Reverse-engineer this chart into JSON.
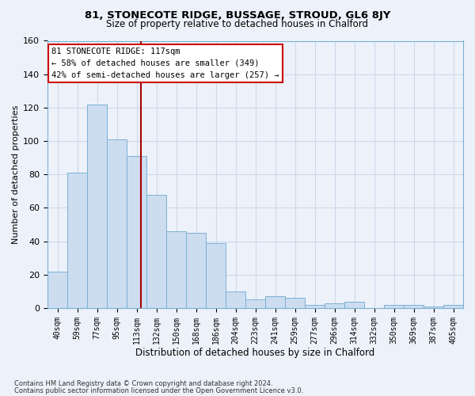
{
  "title1": "81, STONECOTE RIDGE, BUSSAGE, STROUD, GL6 8JY",
  "title2": "Size of property relative to detached houses in Chalford",
  "xlabel": "Distribution of detached houses by size in Chalford",
  "ylabel": "Number of detached properties",
  "footer1": "Contains HM Land Registry data © Crown copyright and database right 2024.",
  "footer2": "Contains public sector information licensed under the Open Government Licence v3.0.",
  "bins": [
    "40sqm",
    "59sqm",
    "77sqm",
    "95sqm",
    "113sqm",
    "132sqm",
    "150sqm",
    "168sqm",
    "186sqm",
    "204sqm",
    "223sqm",
    "241sqm",
    "259sqm",
    "277sqm",
    "296sqm",
    "314sqm",
    "332sqm",
    "350sqm",
    "369sqm",
    "387sqm",
    "405sqm"
  ],
  "values": [
    22,
    81,
    122,
    101,
    91,
    68,
    46,
    45,
    39,
    10,
    5,
    7,
    6,
    2,
    3,
    4,
    0,
    2,
    2,
    1,
    2
  ],
  "bar_color": "#ccddf0",
  "bar_edge_color": "#7bafd4",
  "grid_color": "#cdd8ea",
  "bg_color": "#edf2fa",
  "vline_color": "#aa0000",
  "annotation_text": "81 STONECOTE RIDGE: 117sqm\n← 58% of detached houses are smaller (349)\n42% of semi-detached houses are larger (257) →",
  "annotation_box_color": "#ffffff",
  "annotation_box_edge": "#cc0000",
  "ylim": [
    0,
    160
  ],
  "yticks": [
    0,
    20,
    40,
    60,
    80,
    100,
    120,
    140,
    160
  ]
}
